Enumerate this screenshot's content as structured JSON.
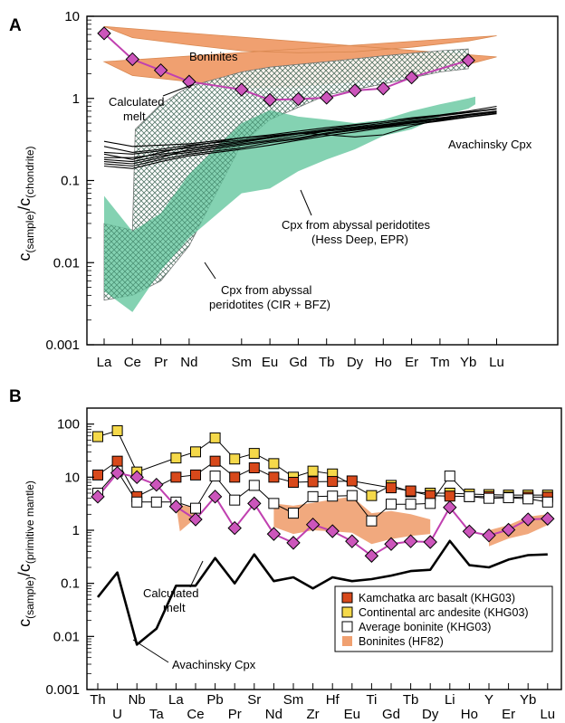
{
  "colors": {
    "boninite_band": "#f0a070",
    "boninite_band_stroke": "#d98850",
    "abyssal_hess": "#6fcaa5",
    "abyssal_cir_hatch": "#888888",
    "calculated_melt_line": "#c040b0",
    "calculated_melt_marker": "#cc55bb",
    "kamchatka_marker": "#d8491b",
    "andesite_marker": "#f5d94a",
    "average_boninite_marker": "#ffffff",
    "avachinsky_cpx": "#000000"
  },
  "chart_data": [
    {
      "type": "line",
      "panel_label": "A",
      "ylabel_main": "c",
      "ylabel_sub1": "(sample)",
      "ylabel_slash": "/c",
      "ylabel_sub2": "(chondrite)",
      "yscale": "log",
      "ylim": [
        0.001,
        10
      ],
      "yticks": [
        {
          "v": 10,
          "label": "10"
        },
        {
          "v": 1,
          "label": "1"
        },
        {
          "v": 0.1,
          "label": "0.1"
        },
        {
          "v": 0.01,
          "label": "0.01"
        },
        {
          "v": 0.001,
          "label": "0.001"
        }
      ],
      "categories": [
        "La",
        "Ce",
        "Pr",
        "Nd",
        "Sm",
        "Eu",
        "Gd",
        "Tb",
        "Dy",
        "Ho",
        "Er",
        "Tm",
        "Yb",
        "Lu"
      ],
      "category_positions": [
        0,
        1,
        2,
        3,
        4.85,
        5.85,
        6.85,
        7.85,
        8.85,
        9.85,
        10.85,
        11.85,
        12.85,
        13.85
      ],
      "annotations": {
        "boninites": "Boninites",
        "calculated_melt_1": "Calculated",
        "calculated_melt_2": "melt",
        "avachinsky": "Avachinsky Cpx",
        "hess_1": "Cpx from abyssal peridotites",
        "hess_2": "(Hess Deep, EPR)",
        "cir_1": "Cpx from abyssal",
        "cir_2": "peridotites (CIR + BFZ)"
      },
      "series": [
        {
          "key": "calculated_melt",
          "x": [
            0,
            1,
            2,
            3,
            4.85,
            5.85,
            6.85,
            7.85,
            8.85,
            9.85,
            10.85,
            12.85
          ],
          "values": [
            6.2,
            3.0,
            2.2,
            1.6,
            1.28,
            0.96,
            0.98,
            1.02,
            1.25,
            1.32,
            1.8,
            2.9
          ]
        }
      ],
      "bands": [
        {
          "key": "boninites",
          "upper": [
            [
              0,
              7.5
            ],
            [
              1,
              5.5
            ],
            [
              3,
              4.5
            ],
            [
              4.85,
              3.8
            ],
            [
              6.85,
              3.6
            ],
            [
              8.85,
              3.7
            ],
            [
              10.85,
              4.2
            ],
            [
              12.85,
              5.0
            ],
            [
              13.85,
              5.8
            ]
          ],
          "lower": [
            [
              0,
              2.8
            ],
            [
              1,
              1.9
            ],
            [
              3,
              1.6
            ],
            [
              4.85,
              1.35
            ],
            [
              6.85,
              1.4
            ],
            [
              8.85,
              1.6
            ],
            [
              10.85,
              1.9
            ],
            [
              12.85,
              2.6
            ],
            [
              13.85,
              3.2
            ]
          ]
        },
        {
          "key": "cir_bfz",
          "upper": [
            [
              1.1,
              0.42
            ],
            [
              2,
              0.85
            ],
            [
              3,
              1.4
            ],
            [
              4.85,
              2.1
            ],
            [
              5.85,
              2.4
            ],
            [
              7.85,
              2.8
            ],
            [
              9.85,
              3.3
            ],
            [
              11.85,
              3.8
            ],
            [
              12.85,
              4.0
            ]
          ],
          "lower": [
            [
              12.85,
              2.3
            ],
            [
              11.85,
              2.1
            ],
            [
              9.85,
              1.5
            ],
            [
              7.85,
              1.1
            ],
            [
              5.85,
              0.55
            ],
            [
              4.85,
              0.28
            ],
            [
              3,
              0.016
            ],
            [
              2,
              0.006
            ],
            [
              1,
              0.004
            ],
            [
              0,
              0.0035
            ],
            [
              0,
              0.03
            ],
            [
              1,
              0.025
            ],
            [
              1.1,
              0.42
            ]
          ]
        },
        {
          "key": "hess_deep",
          "upper": [
            [
              0,
              0.065
            ],
            [
              1,
              0.024
            ],
            [
              2,
              0.04
            ],
            [
              3,
              0.12
            ],
            [
              4.85,
              0.5
            ],
            [
              5.85,
              0.72
            ],
            [
              6.85,
              0.6
            ],
            [
              7.85,
              0.55
            ],
            [
              8.85,
              0.5
            ],
            [
              9.85,
              0.55
            ],
            [
              10.85,
              0.7
            ],
            [
              11.85,
              0.85
            ],
            [
              12.85,
              1.0
            ],
            [
              13.1,
              1.05
            ]
          ],
          "lower": [
            [
              13.1,
              0.85
            ],
            [
              12.85,
              0.75
            ],
            [
              11.85,
              0.6
            ],
            [
              10.85,
              0.42
            ],
            [
              9.85,
              0.35
            ],
            [
              8.85,
              0.24
            ],
            [
              7.85,
              0.18
            ],
            [
              6.85,
              0.13
            ],
            [
              5.85,
              0.08
            ],
            [
              4.85,
              0.07
            ],
            [
              3,
              0.02
            ],
            [
              2,
              0.008
            ],
            [
              1,
              0.0025
            ],
            [
              0,
              0.0045
            ]
          ]
        }
      ],
      "avachinsky_lines": [
        [
          0.3,
          0.26,
          0.27,
          0.28,
          0.33,
          0.36,
          0.4,
          0.44,
          0.48,
          0.52,
          0.58,
          0.63,
          0.7,
          0.8
        ],
        [
          0.22,
          0.21,
          0.23,
          0.25,
          0.3,
          0.33,
          0.37,
          0.41,
          0.45,
          0.5,
          0.55,
          0.61,
          0.67,
          0.74
        ],
        [
          0.19,
          0.19,
          0.21,
          0.23,
          0.28,
          0.31,
          0.35,
          0.4,
          0.44,
          0.48,
          0.53,
          0.58,
          0.64,
          0.7
        ],
        [
          0.18,
          0.17,
          0.2,
          0.22,
          0.27,
          0.3,
          0.33,
          0.38,
          0.42,
          0.46,
          0.51,
          0.56,
          0.62,
          0.68
        ],
        [
          0.16,
          0.15,
          0.18,
          0.21,
          0.25,
          0.29,
          0.32,
          0.37,
          0.41,
          0.45,
          0.5,
          0.54,
          0.6,
          0.66
        ],
        [
          0.15,
          0.14,
          0.17,
          0.2,
          0.24,
          0.27,
          0.31,
          0.35,
          0.39,
          0.44,
          0.48,
          0.53,
          0.59,
          0.65
        ],
        [
          0.21,
          0.18,
          0.22,
          0.26,
          0.33,
          0.35,
          0.38,
          0.36,
          0.34,
          0.36,
          0.46,
          0.55,
          0.63,
          0.7
        ],
        [
          0.26,
          0.22,
          0.24,
          0.27,
          0.31,
          0.34,
          0.38,
          0.42,
          0.47,
          0.52,
          0.57,
          0.62,
          0.68,
          0.75
        ],
        [
          0.17,
          0.16,
          0.19,
          0.24,
          0.29,
          0.33,
          0.37,
          0.4,
          0.43,
          0.47,
          0.52,
          0.57,
          0.63,
          0.69
        ]
      ]
    },
    {
      "type": "line",
      "panel_label": "B",
      "ylabel_main": "c",
      "ylabel_sub1": "(sample)",
      "ylabel_slash": "/c",
      "ylabel_sub2": "(primitive mantle)",
      "yscale": "log",
      "ylim": [
        0.001,
        200
      ],
      "yticks": [
        {
          "v": 100,
          "label": "100"
        },
        {
          "v": 10,
          "label": "10"
        },
        {
          "v": 1,
          "label": "1"
        },
        {
          "v": 0.1,
          "label": "0.1"
        },
        {
          "v": 0.01,
          "label": "0.01"
        },
        {
          "v": 0.001,
          "label": "0.001"
        }
      ],
      "categories": [
        "Th",
        "U",
        "Nb",
        "Ta",
        "La",
        "Ce",
        "Pb",
        "Pr",
        "Sr",
        "Nd",
        "Sm",
        "Zr",
        "Hf",
        "Eu",
        "Ti",
        "Gd",
        "Tb",
        "Dy",
        "Li",
        "Ho",
        "Y",
        "Er",
        "Yb",
        "Lu"
      ],
      "label_rows": [
        0,
        1,
        0,
        1,
        0,
        1,
        0,
        1,
        0,
        1,
        0,
        1,
        0,
        1,
        0,
        1,
        0,
        1,
        0,
        1,
        0,
        1,
        0,
        1
      ],
      "annotations": {
        "calculated_melt_1": "Calculated",
        "calculated_melt_2": "melt",
        "avachinsky": "Avachinsky Cpx"
      },
      "legend": [
        {
          "key": "kamchatka",
          "label": "Kamchatka arc basalt (KHG03)"
        },
        {
          "key": "andesite",
          "label": "Continental arc andesite (KHG03)"
        },
        {
          "key": "average_boninite",
          "label": "Average boninite (KHG03)"
        },
        {
          "key": "boninite_band",
          "label": "Boninites (HF82)"
        }
      ],
      "series": [
        {
          "key": "andesite",
          "values": [
            58,
            75,
            12.5,
            null,
            23,
            30,
            55,
            22,
            28,
            18,
            10,
            13,
            11.5,
            null,
            4.5,
            7,
            5.3,
            5,
            5,
            4.8,
            4.7,
            4.6,
            4.6,
            4.6
          ]
        },
        {
          "key": "kamchatka",
          "values": [
            11,
            20,
            4.3,
            null,
            10,
            11,
            20,
            10,
            15,
            10,
            8,
            8.2,
            8.3,
            8.5,
            null,
            6.3,
            5.5,
            4.5,
            4.4,
            4.3,
            4.3,
            4.2,
            4.2,
            4.2
          ]
        },
        {
          "key": "average_boninite",
          "values": [
            5,
            13,
            3.4,
            3.4,
            3.4,
            2.6,
            10.5,
            3.7,
            7,
            3.2,
            2.1,
            4.3,
            4.4,
            4.5,
            1.5,
            3.1,
            3.1,
            3.2,
            10.5,
            4.3,
            4,
            4.1,
            3.9,
            3.4
          ]
        },
        {
          "key": "calculated_melt",
          "values": [
            4.3,
            12,
            10,
            7.2,
            2.8,
            1.6,
            4.3,
            1.1,
            3.2,
            0.85,
            0.58,
            1.28,
            0.96,
            0.62,
            0.33,
            0.55,
            0.62,
            0.6,
            2.7,
            0.95,
            0.8,
            1.02,
            1.6,
            1.65
          ]
        },
        {
          "key": "avachinsky_cpx",
          "values": [
            0.055,
            0.16,
            0.007,
            0.014,
            0.09,
            0.09,
            0.3,
            0.1,
            0.35,
            0.11,
            0.13,
            0.08,
            0.13,
            0.11,
            0.12,
            0.14,
            0.17,
            0.18,
            0.63,
            0.22,
            0.2,
            0.28,
            0.34,
            0.35
          ]
        }
      ],
      "bands": [
        {
          "key": "boninite_band_1",
          "upper": [
            [
              4.0,
              3.1
            ],
            [
              5.0,
              2.7
            ]
          ],
          "lower": [
            [
              5.0,
              1.7
            ],
            [
              4.2,
              0.95
            ]
          ]
        },
        {
          "key": "boninite_band_2",
          "upper": [
            [
              9.0,
              3.2
            ],
            [
              10.0,
              2.9
            ],
            [
              11.0,
              3.3
            ],
            [
              12.0,
              3.8
            ],
            [
              13.0,
              4.3
            ],
            [
              14.0,
              2.1
            ],
            [
              15.0,
              2.3
            ],
            [
              16.0,
              2.0
            ],
            [
              17.0,
              1.6
            ]
          ],
          "lower": [
            [
              17.0,
              0.85
            ],
            [
              16.0,
              0.78
            ],
            [
              15.0,
              0.68
            ],
            [
              14.0,
              0.55
            ],
            [
              13.0,
              0.9
            ],
            [
              12.0,
              0.95
            ],
            [
              11.0,
              1.0
            ],
            [
              10.0,
              0.85
            ],
            [
              9.0,
              1.15
            ]
          ]
        },
        {
          "key": "boninite_band_3",
          "upper": [
            [
              20.0,
              1.0
            ],
            [
              21.0,
              1.25
            ],
            [
              22.0,
              1.8
            ],
            [
              23.0,
              2.0
            ]
          ],
          "lower": [
            [
              23.0,
              1.25
            ],
            [
              22.0,
              0.85
            ],
            [
              21.0,
              0.7
            ],
            [
              20.0,
              0.5
            ]
          ]
        }
      ]
    }
  ]
}
